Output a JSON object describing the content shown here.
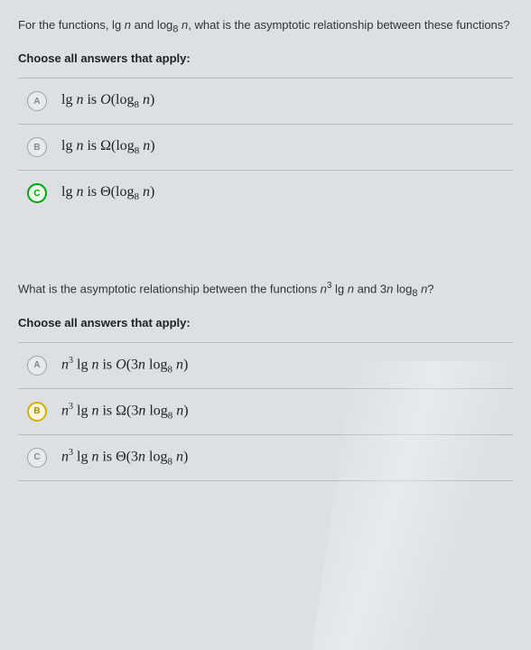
{
  "q1": {
    "prompt": "For the functions, lg n and log₈ n, what is the asymptotic relationship between these functions?",
    "instruction": "Choose all answers that apply:",
    "options": [
      {
        "letter": "A",
        "state": "unselected",
        "text": "lg n is O(log₈ n)"
      },
      {
        "letter": "B",
        "state": "unselected",
        "text": "lg n is Ω(log₈ n)"
      },
      {
        "letter": "C",
        "state": "green",
        "text": "lg n is Θ(log₈ n)"
      }
    ]
  },
  "q2": {
    "prompt": "What is the asymptotic relationship between the functions n³ lg n and 3n log₈ n?",
    "instruction": "Choose all answers that apply:",
    "options": [
      {
        "letter": "A",
        "state": "unselected",
        "text": "n³ lg n is O(3n log₈ n)"
      },
      {
        "letter": "B",
        "state": "yellow",
        "text": "n³ lg n is Ω(3n log₈ n)"
      },
      {
        "letter": "C",
        "state": "unselected",
        "text": "n³ lg n is Θ(3n log₈ n)"
      }
    ]
  },
  "colors": {
    "background": "#dce0e3",
    "divider": "#b8bcc0",
    "green": "#00a60e",
    "yellow": "#d4b100"
  }
}
